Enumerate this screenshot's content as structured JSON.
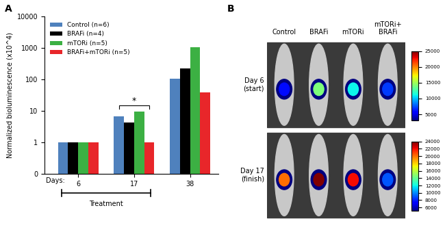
{
  "panel_labels": [
    "A",
    "B"
  ],
  "chart_data": {
    "type": "bar",
    "log": "y",
    "grid": false,
    "legend": "upper left",
    "ylabel": "Normalized bioluminescence (x10^4)",
    "x_prefix": "Days:",
    "categories": [
      "6",
      "17",
      "38"
    ],
    "series": [
      {
        "name": "Control (n=6)",
        "color": "#4f81bd",
        "values": [
          1,
          6.8,
          105
        ]
      },
      {
        "name": "BRAFi (n=4)",
        "color": "#000000",
        "values": [
          1,
          4.3,
          220
        ]
      },
      {
        "name": "mTORi (n=5)",
        "color": "#3cb043",
        "values": [
          1,
          9.5,
          1050
        ]
      },
      {
        "name": "BRAFi+mTORi (n=5)",
        "color": "#e8262a",
        "values": [
          1,
          1.0,
          38
        ]
      }
    ],
    "ylim": [
      0.1,
      10000
    ],
    "yticks": [
      {
        "value": 0.1,
        "label": "0"
      },
      1,
      10,
      100,
      1000,
      10000
    ],
    "significance": {
      "text": "*",
      "category": "17",
      "from": "Control (n=6)",
      "to": "BRAFi+mTORi (n=5)"
    },
    "period": {
      "text": "Treatment",
      "from": "6",
      "to": "17"
    }
  },
  "imaging": {
    "columns": [
      "Control",
      "BRAFi",
      "mTORi",
      "mTORi+\nBRAFi"
    ],
    "rows": [
      {
        "label": "Day 6\n(start)",
        "signal": [
          6000,
          14000,
          11000,
          7000
        ],
        "colorbar": {
          "range": [
            3000,
            25000
          ],
          "ticks": [
            5000,
            10000,
            15000,
            20000,
            25000
          ]
        }
      },
      {
        "label": "Day 17\n(finish)",
        "signal": [
          20000,
          24000,
          22000,
          9000
        ],
        "colorbar": {
          "range": [
            5000,
            24000
          ],
          "ticks": [
            6000,
            8000,
            10000,
            12000,
            14000,
            16000,
            18000,
            20000,
            22000,
            24000
          ]
        }
      }
    ]
  }
}
